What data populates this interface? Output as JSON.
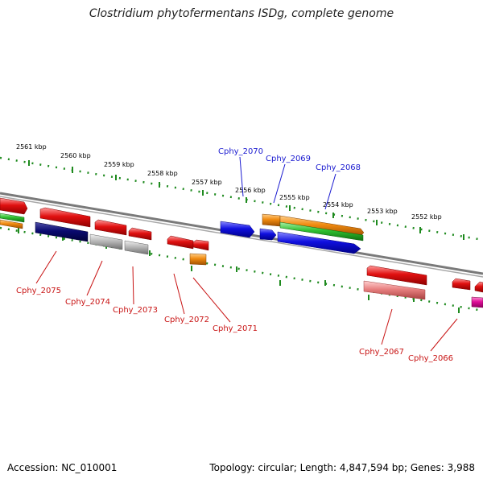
{
  "title": "Clostridium phytofermentans ISDg, complete genome",
  "footer": {
    "accession": "Accession: NC_010001",
    "topology": "Topology: circular; Length: 4,847,594 bp; Genes: 3,988"
  },
  "kbp_labels": [
    "2561 kbp",
    "2560 kbp",
    "2559 kbp",
    "2558 kbp",
    "2557 kbp",
    "2556 kbp",
    "2555 kbp",
    "2554 kbp",
    "2553 kbp",
    "2552 kbp"
  ],
  "gene_labels": {
    "cphy_2070": "Cphy_2070",
    "cphy_2069": "Cphy_2069",
    "cphy_2068": "Cphy_2068",
    "cphy_2075": "Cphy_2075",
    "cphy_2074": "Cphy_2074",
    "cphy_2073": "Cphy_2073",
    "cphy_2072": "Cphy_2072",
    "cphy_2071": "Cphy_2071",
    "cphy_2067": "Cphy_2067",
    "cphy_2066": "Cphy_2066"
  },
  "colors": {
    "backbone": "#7a7a7a",
    "tick": "#1e8a1e",
    "gene_red": "#e01010",
    "gene_blue": "#1010e0",
    "gene_navy": "#0a0a70",
    "gene_orange": "#f08a10",
    "gene_green": "#30c030",
    "gene_grey": "#b8b8b8",
    "gene_pink": "#e88080",
    "gene_magenta": "#e0109a",
    "label_blue": "#1a1ad0",
    "label_red": "#c81414"
  }
}
